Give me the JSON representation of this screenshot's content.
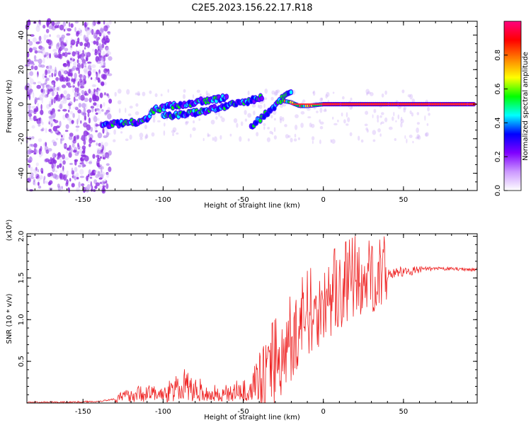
{
  "title": "C2E5.2023.156.22.17.R18",
  "chart_data": [
    {
      "type": "heatmap",
      "xlabel": "Height of straight line (km)",
      "ylabel": "Frequency (Hz)",
      "xlim": [
        -185,
        96
      ],
      "ylim": [
        -50,
        48
      ],
      "x_ticks": [
        -150,
        -100,
        -50,
        0,
        50
      ],
      "y_ticks": [
        -40,
        -20,
        0,
        20,
        40
      ],
      "colorbar": {
        "label": "Normalized spectral amplitude",
        "range": [
          0,
          1
        ],
        "ticks": [
          "0.0",
          "0.2",
          "0.4",
          "0.6",
          "0.8"
        ],
        "colors": [
          "#ffffff",
          "#cc99ff",
          "#8000ff",
          "#0000ff",
          "#00ffff",
          "#00ff00",
          "#ffff00",
          "#ff8000",
          "#ff0000",
          "#ff0080"
        ]
      },
      "ridges": [
        {
          "x": [
            -138,
            -125,
            -115,
            -110,
            -105,
            -95,
            -85,
            -75,
            -65,
            -60
          ],
          "f": [
            -12,
            -11,
            -10,
            -8,
            -3,
            -1,
            0,
            2,
            3,
            4
          ]
        },
        {
          "x": [
            -100,
            -90,
            -80,
            -70,
            -60,
            -50,
            -42,
            -38
          ],
          "f": [
            -7,
            -6,
            -5,
            -3,
            -1,
            1,
            3,
            4
          ]
        },
        {
          "x": [
            -45,
            -40,
            -35,
            -30,
            -25,
            -20
          ],
          "f": [
            -13,
            -9,
            -5,
            -1,
            4,
            8
          ]
        },
        {
          "x": [
            -25,
            -20,
            -15,
            -10,
            0,
            20,
            40,
            60,
            80,
            95
          ],
          "f": [
            2,
            1,
            -1,
            -1,
            0,
            0,
            0,
            0,
            0,
            0
          ]
        }
      ]
    },
    {
      "type": "line",
      "xlabel": "Height of straight line (km)",
      "ylabel": "SNR (10 * v/v)",
      "multiplier": "(x10⁴)",
      "xlim": [
        -185,
        96
      ],
      "ylim": [
        0,
        2.03
      ],
      "x_ticks": [
        -150,
        -100,
        -50,
        0,
        50
      ],
      "y_ticks": [
        "0.5",
        "1.0",
        "1.5",
        "2.0"
      ],
      "series": [
        {
          "color": "#ee2222",
          "x": [
            -185,
            -160,
            -140,
            -130,
            -120,
            -110,
            -100,
            -90,
            -85,
            -80,
            -70,
            -60,
            -50,
            -45,
            -40,
            -35,
            -30,
            -25,
            -20,
            -15,
            -10,
            -5,
            0,
            10,
            20,
            30,
            40,
            50,
            60,
            70,
            80,
            96
          ],
          "y": [
            0.01,
            0.01,
            0.02,
            0.05,
            0.1,
            0.12,
            0.1,
            0.16,
            0.2,
            0.15,
            0.1,
            0.1,
            0.14,
            0.18,
            0.24,
            0.3,
            0.42,
            0.55,
            0.72,
            0.88,
            1.0,
            1.08,
            1.18,
            1.3,
            1.42,
            1.52,
            1.56,
            1.57,
            1.6,
            1.61,
            1.61,
            1.6
          ]
        }
      ]
    }
  ]
}
